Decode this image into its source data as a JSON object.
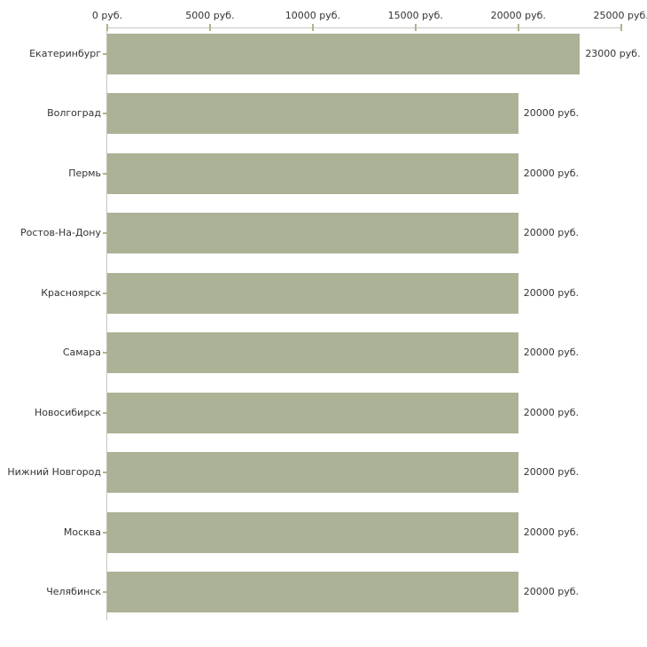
{
  "chart_data": {
    "type": "bar",
    "orientation": "horizontal",
    "title": "",
    "xlabel": "",
    "ylabel": "",
    "unit": "руб.",
    "grid": false,
    "legend": false,
    "xlim": [
      0,
      25000
    ],
    "x_ticks": [
      0,
      5000,
      10000,
      15000,
      20000,
      25000
    ],
    "x_tick_labels": [
      "0 руб.",
      "5000 руб.",
      "10000 руб.",
      "15000 руб.",
      "20000 руб.",
      "25000 руб."
    ],
    "categories": [
      "Екатеринбург",
      "Волгоград",
      "Пермь",
      "Ростов-На-Дону",
      "Красноярск",
      "Самара",
      "Новосибирск",
      "Нижний Новгород",
      "Москва",
      "Челябинск"
    ],
    "values": [
      23000,
      20000,
      20000,
      20000,
      20000,
      20000,
      20000,
      20000,
      20000,
      20000
    ],
    "value_labels": [
      "23000 руб.",
      "20000 руб.",
      "20000 руб.",
      "20000 руб.",
      "20000 руб.",
      "20000 руб.",
      "20000 руб.",
      "20000 руб.",
      "20000 руб.",
      "20000 руб."
    ],
    "colors": {
      "bar": "#abb296",
      "axis_line": "#c5c5c0",
      "tick_mark": "#b2b38a",
      "text": "#333333",
      "background": "#ffffff"
    }
  }
}
